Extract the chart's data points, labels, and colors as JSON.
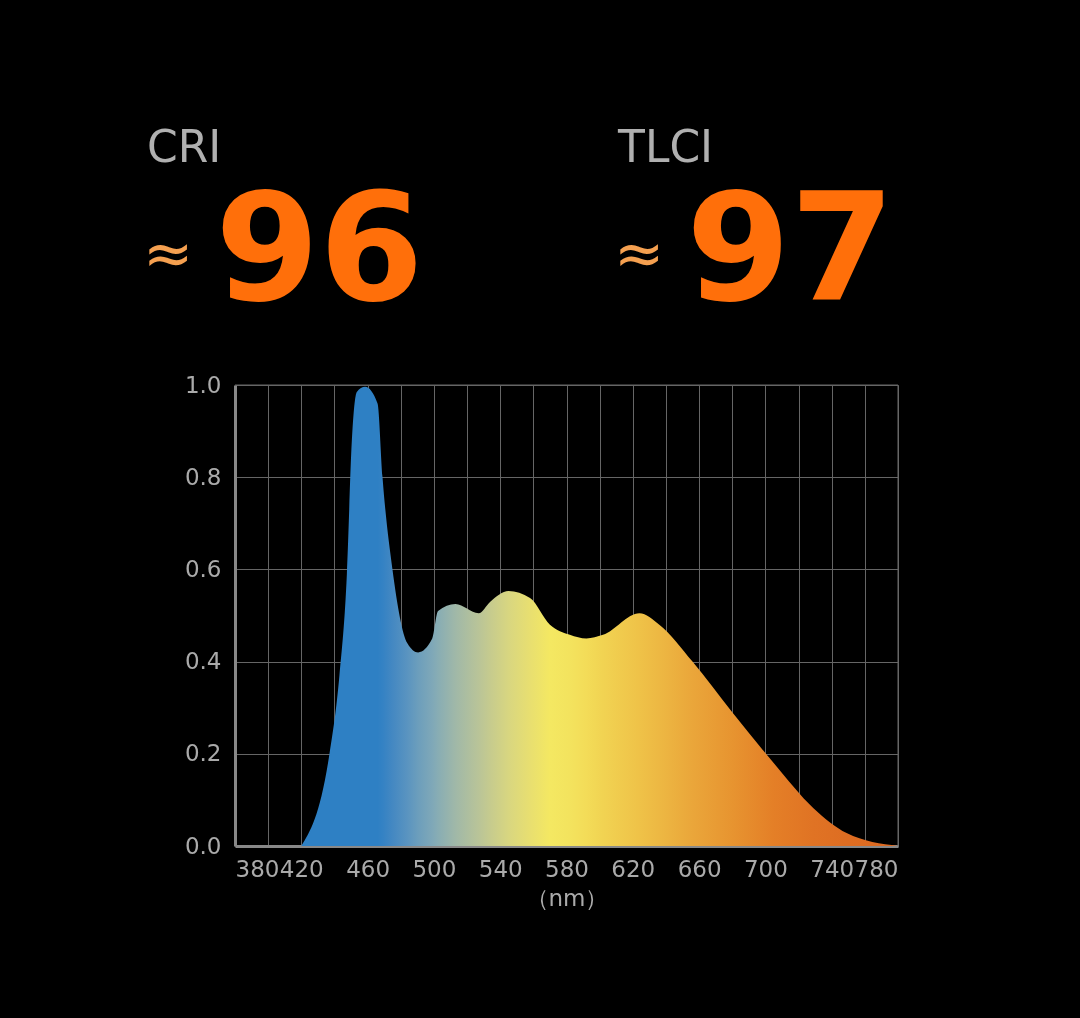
{
  "chart_data": {
    "type": "area",
    "annotations": [
      "CRI",
      "≈96",
      "TLCI",
      "≈97"
    ],
    "xlabel": "（nm）",
    "x": [
      420,
      437,
      443,
      447.5,
      450.5,
      453.5,
      458.5,
      466,
      469,
      475,
      484,
      490.5,
      499,
      502.5,
      513,
      527,
      534,
      545,
      558,
      570,
      582,
      592,
      602,
      624,
      636,
      656,
      680,
      705,
      729,
      749,
      780
    ],
    "series": [
      {
        "colors": [
          "#2e80c4",
          "#2e80c4",
          "#2e80c4",
          "#2e80c4",
          "#2e80c4",
          "#2e80c4",
          "#2e80c4",
          "#2e80c4",
          "#3482c4",
          "#4488c2",
          "#5a94c0",
          "#6c9ebc",
          "#7fa8b8",
          "#88adb4",
          "#a0b8a8",
          "#b9c498",
          "#c6cb8e",
          "#d8d680",
          "#e8df70",
          "#f4e862",
          "#f3e35e",
          "#f3dc58",
          "#f1d352",
          "#efc248",
          "#edb843",
          "#eaa63a",
          "#e79430",
          "#e47f27",
          "#e07324",
          "#de6d22",
          "#dc6820"
        ],
        "values": [
          0,
          0.2,
          0.37,
          0.59,
          0.88,
          0.985,
          0.996,
          0.96,
          0.8,
          0.6,
          0.44,
          0.42,
          0.45,
          0.51,
          0.525,
          0.505,
          0.53,
          0.553,
          0.538,
          0.48,
          0.458,
          0.45,
          0.458,
          0.505,
          0.48,
          0.4,
          0.29,
          0.18,
          0.082,
          0.028,
          0
        ]
      }
    ],
    "xlim": [
      380,
      780
    ],
    "xticks": [
      380,
      {
        "value": 400,
        "label": null
      },
      420,
      {
        "value": 440,
        "label": null
      },
      460,
      {
        "value": 480,
        "label": null
      },
      500,
      {
        "value": 520,
        "label": null
      },
      540,
      {
        "value": 560,
        "label": null
      },
      580,
      {
        "value": 600,
        "label": null
      },
      620,
      {
        "value": 640,
        "label": null
      },
      660,
      {
        "value": 680,
        "label": null
      },
      700,
      {
        "value": 720,
        "label": null
      },
      740,
      {
        "value": 760,
        "label": null
      },
      780
    ],
    "ylim": [
      0,
      1
    ],
    "yticks": [
      {
        "value": 0,
        "label": "0.0"
      },
      0.2,
      0.4,
      0.6,
      0.8,
      {
        "value": 1,
        "label": "1.0"
      }
    ],
    "grid": true
  }
}
